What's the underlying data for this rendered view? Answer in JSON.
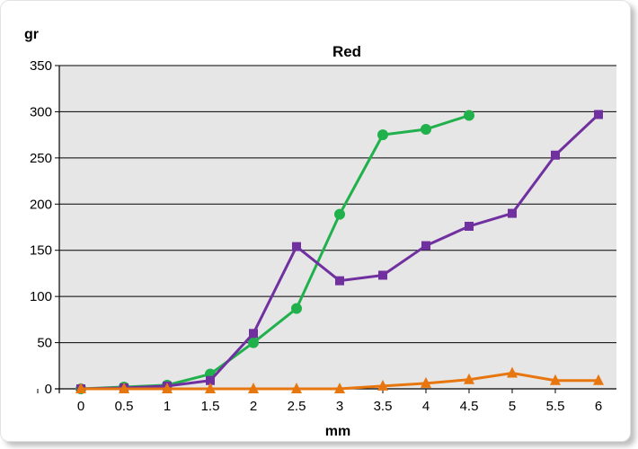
{
  "chart_data": {
    "type": "line",
    "title": "Red",
    "xlabel": "mm",
    "ylabel": "gr",
    "xlim": [
      0,
      6
    ],
    "ylim": [
      0,
      350
    ],
    "x_ticks": [
      "0",
      "0.5",
      "1",
      "1.5",
      "2",
      "2.5",
      "3",
      "3.5",
      "4",
      "4.5",
      "5",
      "5.5",
      "6"
    ],
    "y_ticks": [
      "0",
      "50",
      "100",
      "150",
      "200",
      "250",
      "300",
      "350"
    ],
    "grid": true,
    "plot_background": "#e6e6e6",
    "series": [
      {
        "color": "#21b14c",
        "marker": "circle",
        "x": [
          0,
          0.5,
          1,
          1.5,
          2,
          2.5,
          3,
          3.5,
          4,
          4.5
        ],
        "values": [
          0,
          2,
          4,
          16,
          50,
          87,
          189,
          275,
          281,
          296
        ]
      },
      {
        "color": "#7030a0",
        "marker": "square",
        "x": [
          0,
          0.5,
          1,
          1.5,
          2,
          2.5,
          3,
          3.5,
          4,
          4.5,
          5,
          5.5,
          6
        ],
        "values": [
          0,
          1,
          3,
          9,
          60,
          154,
          117,
          123,
          155,
          176,
          190,
          253,
          297
        ]
      },
      {
        "color": "#e8760f",
        "marker": "triangle",
        "x": [
          0,
          0.5,
          1,
          1.5,
          2,
          2.5,
          3,
          3.5,
          4,
          4.5,
          5,
          5.5,
          6
        ],
        "values": [
          0,
          0,
          0,
          0,
          0,
          0,
          0,
          3,
          6,
          10,
          17,
          9,
          9
        ]
      }
    ]
  }
}
